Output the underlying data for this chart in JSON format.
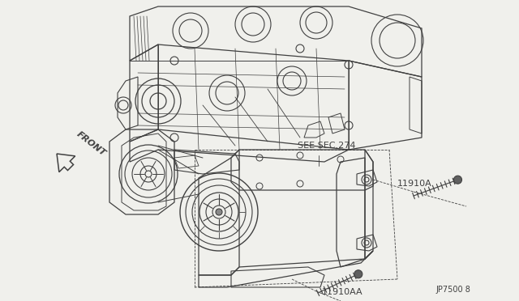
{
  "bg_color": "#f0f0ec",
  "lc": "#404040",
  "lw": 0.8,
  "front_label": "FRONT",
  "label_A": "11910A",
  "label_AA": "11910AA",
  "label_sec": "SEE SEC.274",
  "ref_code": "JP7500 8",
  "fig_w": 6.4,
  "fig_h": 3.72,
  "dpi": 100
}
